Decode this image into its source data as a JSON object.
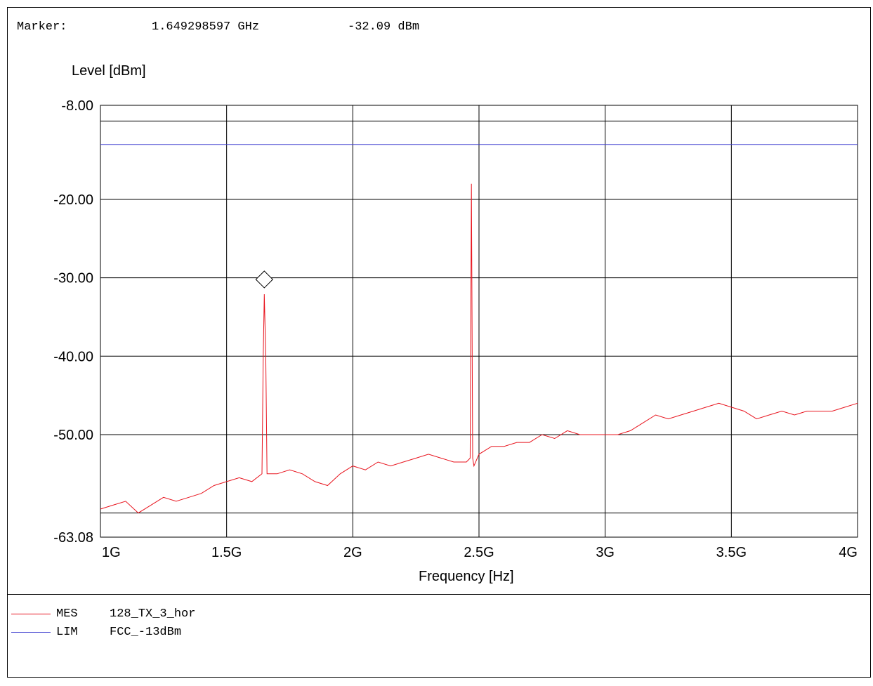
{
  "marker": {
    "label": "Marker:",
    "frequency": "1.649298597 GHz",
    "level": "-32.09 dBm"
  },
  "legend": [
    {
      "kind": "MES",
      "name": "128_TX_3_hor",
      "color": "#e8141e"
    },
    {
      "kind": "LIM",
      "name": "FCC_-13dBm",
      "color": "#4040d0"
    }
  ],
  "chart_data": {
    "type": "line",
    "title": "",
    "xlabel": "Frequency [Hz]",
    "ylabel": "Level [dBm]",
    "xlim": [
      1000000000,
      4000000000
    ],
    "ylim": [
      -63.08,
      -8.0
    ],
    "x_ticks": [
      {
        "value": 1000000000,
        "label": "1G"
      },
      {
        "value": 1500000000,
        "label": "1.5G"
      },
      {
        "value": 2000000000,
        "label": "2G"
      },
      {
        "value": 2500000000,
        "label": "2.5G"
      },
      {
        "value": 3000000000,
        "label": "3G"
      },
      {
        "value": 3500000000,
        "label": "3.5G"
      },
      {
        "value": 4000000000,
        "label": "4G"
      }
    ],
    "y_ticks": [
      {
        "value": -8.0,
        "label": "-8.00"
      },
      {
        "value": -20.0,
        "label": "-20.00"
      },
      {
        "value": -30.0,
        "label": "-30.00"
      },
      {
        "value": -40.0,
        "label": "-40.00"
      },
      {
        "value": -50.0,
        "label": "-50.00"
      },
      {
        "value": -63.08,
        "label": "-63.08"
      }
    ],
    "y_grid_extra": [
      -10.0,
      -60.0
    ],
    "grid": true,
    "legend_position": "bottom",
    "series": [
      {
        "name": "128_TX_3_hor",
        "color": "#e8141e",
        "x": [
          1000000000,
          1050000000,
          1100000000,
          1150000000,
          1200000000,
          1250000000,
          1300000000,
          1350000000,
          1400000000,
          1450000000,
          1500000000,
          1550000000,
          1600000000,
          1640000000,
          1645000000,
          1649298597,
          1655000000,
          1660000000,
          1700000000,
          1750000000,
          1800000000,
          1850000000,
          1900000000,
          1950000000,
          2000000000,
          2050000000,
          2100000000,
          2150000000,
          2200000000,
          2250000000,
          2300000000,
          2350000000,
          2400000000,
          2450000000,
          2465000000,
          2470000000,
          2475000000,
          2480000000,
          2500000000,
          2550000000,
          2600000000,
          2650000000,
          2700000000,
          2750000000,
          2800000000,
          2850000000,
          2900000000,
          2950000000,
          3000000000,
          3050000000,
          3100000000,
          3150000000,
          3200000000,
          3250000000,
          3300000000,
          3350000000,
          3400000000,
          3450000000,
          3500000000,
          3550000000,
          3600000000,
          3650000000,
          3700000000,
          3750000000,
          3800000000,
          3850000000,
          3900000000,
          3950000000,
          4000000000
        ],
        "y": [
          -59.5,
          -59.0,
          -58.5,
          -60.0,
          -59.0,
          -58.0,
          -58.5,
          -58.0,
          -57.5,
          -56.5,
          -56.0,
          -55.5,
          -56.0,
          -55.0,
          -40.0,
          -32.09,
          -40.0,
          -55.0,
          -55.0,
          -54.5,
          -55.0,
          -56.0,
          -56.5,
          -55.0,
          -54.0,
          -54.5,
          -53.5,
          -54.0,
          -53.5,
          -53.0,
          -52.5,
          -53.0,
          -53.5,
          -53.5,
          -53.0,
          -18.0,
          -53.0,
          -54.0,
          -52.5,
          -51.5,
          -51.5,
          -51.0,
          -51.0,
          -50.0,
          -50.5,
          -49.5,
          -50.0,
          -50.0,
          -50.0,
          -50.0,
          -49.5,
          -48.5,
          -47.5,
          -48.0,
          -47.5,
          -47.0,
          -46.5,
          -46.0,
          -46.5,
          -47.0,
          -48.0,
          -47.5,
          -47.0,
          -47.5,
          -47.0,
          -47.0,
          -47.0,
          -46.5,
          -46.0
        ]
      },
      {
        "name": "FCC_-13dBm",
        "color": "#4040d0",
        "x": [
          1000000000,
          4000000000
        ],
        "y": [
          -13.0,
          -13.0
        ]
      }
    ],
    "marker": {
      "x": 1649298597,
      "y": -32.09
    }
  }
}
